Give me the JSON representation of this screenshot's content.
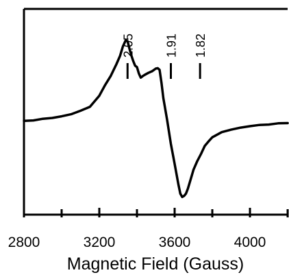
{
  "chart_data": {
    "type": "line",
    "title": "",
    "xlabel": "Magnetic Field (Gauss)",
    "ylabel": "",
    "xlim": [
      2800,
      4200
    ],
    "ylim": [
      0,
      100
    ],
    "x_ticks": [
      2800,
      3200,
      3600,
      4000
    ],
    "grid": false,
    "legend": "none",
    "line_color": "#000000",
    "series": [
      {
        "x": [
          2800,
          2850,
          2900,
          2950,
          3000,
          3050,
          3100,
          3150,
          3200,
          3230,
          3260,
          3290,
          3310,
          3325,
          3340,
          3350,
          3360,
          3370,
          3380,
          3390,
          3400,
          3410,
          3420,
          3430,
          3440,
          3460,
          3480,
          3500,
          3510,
          3520,
          3530,
          3540,
          3560,
          3580,
          3600,
          3620,
          3630,
          3640,
          3650,
          3660,
          3670,
          3680,
          3690,
          3700,
          3720,
          3740,
          3760,
          3780,
          3800,
          3850,
          3900,
          3950,
          4000,
          4050,
          4100,
          4150,
          4200
        ],
        "y": [
          45.6,
          45.8,
          46.6,
          47.0,
          47.8,
          48.8,
          50.5,
          52.4,
          57.8,
          62.9,
          67.3,
          73.0,
          77.2,
          81.7,
          84.7,
          84.3,
          80.7,
          77.4,
          74.7,
          72.4,
          71.7,
          68.6,
          66.6,
          67.3,
          67.9,
          68.9,
          69.7,
          71.0,
          71.2,
          70.4,
          64.1,
          56.7,
          46.1,
          34.4,
          24.7,
          14.7,
          10.2,
          8.6,
          9.1,
          10.2,
          12.6,
          15.6,
          18.7,
          21.8,
          26.0,
          29.5,
          33.4,
          35.6,
          37.6,
          40.1,
          41.3,
          42.3,
          43.0,
          43.6,
          43.8,
          44.4,
          44.5
        ]
      }
    ],
    "g_markers": [
      {
        "label": "2.05",
        "field": 3350
      },
      {
        "label": "1.91",
        "field": 3580
      },
      {
        "label": "1.82",
        "field": 3735
      }
    ]
  }
}
